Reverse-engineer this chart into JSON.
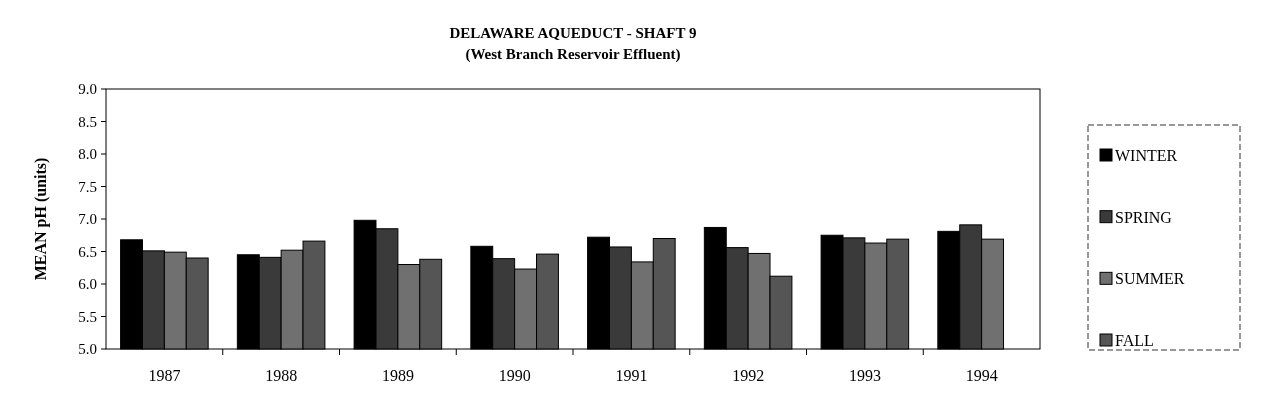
{
  "chart_data": {
    "type": "bar",
    "title": "DELAWARE AQUEDUCT - SHAFT 9",
    "subtitle": "(West Branch Reservoir Effluent)",
    "ylabel": "MEAN pH (units)",
    "categories": [
      "1987",
      "1988",
      "1989",
      "1990",
      "1991",
      "1992",
      "1993",
      "1994"
    ],
    "series": [
      {
        "name": "WINTER",
        "color": "#000000",
        "values": [
          6.68,
          6.45,
          6.98,
          6.58,
          6.72,
          6.87,
          6.75,
          6.81
        ]
      },
      {
        "name": "SPRING",
        "color": "#3a3a3a",
        "values": [
          6.51,
          6.41,
          6.85,
          6.39,
          6.57,
          6.56,
          6.71,
          6.91
        ]
      },
      {
        "name": "SUMMER",
        "color": "#707070",
        "values": [
          6.49,
          6.52,
          6.3,
          6.23,
          6.34,
          6.47,
          6.63,
          6.69
        ]
      },
      {
        "name": "FALL",
        "color": "#555555",
        "values": [
          6.4,
          6.66,
          6.38,
          6.46,
          6.7,
          6.12,
          6.69,
          null
        ]
      }
    ],
    "ylim": [
      5,
      9
    ],
    "yticks": [
      {
        "value": 5,
        "label": "5.0"
      },
      {
        "value": 5.5,
        "label": "5.5"
      },
      {
        "value": 6,
        "label": "6.0"
      },
      {
        "value": 6.5,
        "label": "6.5"
      },
      {
        "value": 7,
        "label": "7.0"
      },
      {
        "value": 7.5,
        "label": "7.5"
      },
      {
        "value": 8,
        "label": "8.0"
      },
      {
        "value": 8.5,
        "label": "8.5"
      },
      {
        "value": 9,
        "label": "9.0"
      }
    ],
    "legend": "right"
  }
}
